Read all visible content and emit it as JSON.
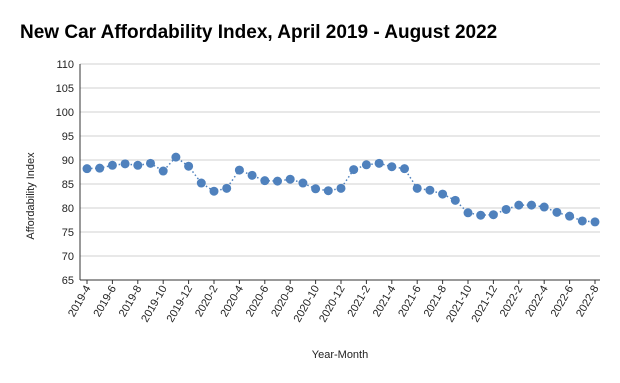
{
  "chart_data": {
    "type": "line",
    "title": "New Car Affordability Index, April 2019 - August 2022",
    "x_label": "Year-Month",
    "y_label": "Affordability Index",
    "categories": [
      "2019-4",
      null,
      "2019-6",
      null,
      "2019-8",
      null,
      "2019-10",
      null,
      "2019-12",
      null,
      "2020-2",
      null,
      "2020-4",
      null,
      "2020-6",
      null,
      "2020-8",
      null,
      "2020-10",
      null,
      "2020-12",
      null,
      "2021-2",
      null,
      "2021-4",
      null,
      "2021-6",
      null,
      "2021-8",
      null,
      "2021-10",
      null,
      "2021-12",
      null,
      "2022-2",
      null,
      "2022-4",
      null,
      "2022-6",
      null,
      "2022-8"
    ],
    "values": [
      88.2,
      88.3,
      88.9,
      89.2,
      88.9,
      89.3,
      87.7,
      90.6,
      88.7,
      85.2,
      83.5,
      84.1,
      87.9,
      86.8,
      85.7,
      85.6,
      86.0,
      85.2,
      84.0,
      83.6,
      84.1,
      88.0,
      89.0,
      89.3,
      88.6,
      88.2,
      84.1,
      83.7,
      82.9,
      81.6,
      79.0,
      78.5,
      78.6,
      79.7,
      80.6,
      80.6,
      80.2,
      79.1,
      78.3,
      77.3,
      77.1
    ],
    "color": "#4f81bd",
    "ylim": [
      65,
      110
    ],
    "yticks": [
      65,
      70,
      75,
      80,
      85,
      90,
      95,
      100,
      105,
      110
    ],
    "grid": true
  }
}
